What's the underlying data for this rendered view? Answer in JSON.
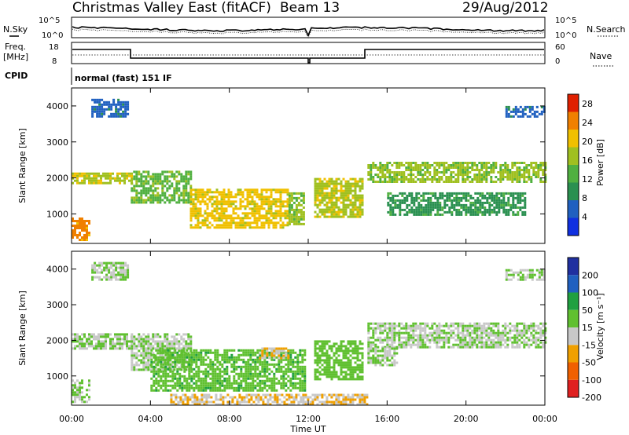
{
  "header": {
    "title": "Christmas Valley East (fitACF)",
    "beam": "Beam 13",
    "date": "29/Aug/2012"
  },
  "top_panels": {
    "nsky_label": "N.Sky",
    "nsearch_label": "N.Search",
    "noise_ticks": [
      "10^5",
      "10^0"
    ],
    "freq_label": "Freq.",
    "freq_unit": "[MHz]",
    "freq_ticks": [
      "18",
      "8"
    ],
    "nave_label": "Nave",
    "nave_ticks": [
      "60",
      "0"
    ],
    "cpid_label": "CPID",
    "cpid_value": "normal (fast) 151 IF"
  },
  "chart_data": [
    {
      "type": "heatmap",
      "title": "",
      "xlabel": "Time UT",
      "ylabel": "Slant Range [km]",
      "x_ticks": [
        "00:00",
        "04:00",
        "08:00",
        "12:00",
        "16:00",
        "20:00",
        "00:00"
      ],
      "xlim": [
        0,
        24
      ],
      "ylim": [
        180,
        4500
      ],
      "y_ticks": [
        1000,
        2000,
        3000,
        4000
      ],
      "colorbar_label": "Power [dB]",
      "colorbar_ticks": [
        4,
        8,
        12,
        16,
        20,
        24,
        28
      ],
      "colorbar_range": [
        0,
        30
      ],
      "colors": [
        "#1030e0",
        "#2060c0",
        "#2a9050",
        "#50b040",
        "#a0c020",
        "#f0c000",
        "#f08000",
        "#e02000"
      ],
      "regions": [
        {
          "x": [
            0.0,
            3.0
          ],
          "y": [
            1850,
            2150
          ],
          "value": 18
        },
        {
          "x": [
            0.0,
            0.9
          ],
          "y": [
            300,
            900
          ],
          "value": 24
        },
        {
          "x": [
            3.0,
            6.0
          ],
          "y": [
            1300,
            2200
          ],
          "value": 14
        },
        {
          "x": [
            6.0,
            11.0
          ],
          "y": [
            600,
            1700
          ],
          "value": 20
        },
        {
          "x": [
            11.0,
            11.8
          ],
          "y": [
            700,
            1600
          ],
          "value": 16
        },
        {
          "x": [
            12.3,
            14.8
          ],
          "y": [
            900,
            2000
          ],
          "value": 18
        },
        {
          "x": [
            15.0,
            24.0
          ],
          "y": [
            1900,
            2450
          ],
          "value": 16
        },
        {
          "x": [
            16.0,
            23.0
          ],
          "y": [
            1000,
            1600
          ],
          "value": 10
        },
        {
          "x": [
            1.0,
            2.8
          ],
          "y": [
            3700,
            4200
          ],
          "value": 6
        },
        {
          "x": [
            22.0,
            24.0
          ],
          "y": [
            3700,
            4000
          ],
          "value": 6
        }
      ]
    },
    {
      "type": "heatmap",
      "title": "",
      "xlabel": "Time UT",
      "ylabel": "Slant Range [km]",
      "x_ticks": [
        "00:00",
        "04:00",
        "08:00",
        "12:00",
        "16:00",
        "20:00",
        "00:00"
      ],
      "xlim": [
        0,
        24
      ],
      "ylim": [
        180,
        4500
      ],
      "y_ticks": [
        1000,
        2000,
        3000,
        4000
      ],
      "colorbar_label": "Velocity [m s⁻¹]",
      "colorbar_ticks": [
        200,
        100,
        50,
        15,
        -15,
        -50,
        -100,
        -200
      ],
      "colorbar_range": [
        -250,
        250
      ],
      "colors": [
        "#e02020",
        "#f06000",
        "#f0a000",
        "#c8c8c8",
        "#60c030",
        "#20a040",
        "#2060c0",
        "#2030a0"
      ],
      "regions": [
        {
          "x": [
            0.0,
            3.0
          ],
          "y": [
            1800,
            2200
          ],
          "value": 0
        },
        {
          "x": [
            0.0,
            0.9
          ],
          "y": [
            300,
            900
          ],
          "value": 0
        },
        {
          "x": [
            3.0,
            6.0
          ],
          "y": [
            1200,
            2200
          ],
          "value": 0
        },
        {
          "x": [
            4.0,
            11.8
          ],
          "y": [
            600,
            1750
          ],
          "value": 40
        },
        {
          "x": [
            9.5,
            11.0
          ],
          "y": [
            1500,
            1800
          ],
          "value": -60
        },
        {
          "x": [
            12.3,
            14.8
          ],
          "y": [
            900,
            2000
          ],
          "value": 30
        },
        {
          "x": [
            15.0,
            24.0
          ],
          "y": [
            1800,
            2500
          ],
          "value": 0
        },
        {
          "x": [
            15.0,
            16.5
          ],
          "y": [
            1300,
            1800
          ],
          "value": 0
        },
        {
          "x": [
            5.0,
            15.0
          ],
          "y": [
            180,
            500
          ],
          "value": -60
        },
        {
          "x": [
            1.0,
            2.8
          ],
          "y": [
            3700,
            4200
          ],
          "value": 0
        },
        {
          "x": [
            22.0,
            24.0
          ],
          "y": [
            3700,
            4000
          ],
          "value": 0
        }
      ]
    }
  ]
}
